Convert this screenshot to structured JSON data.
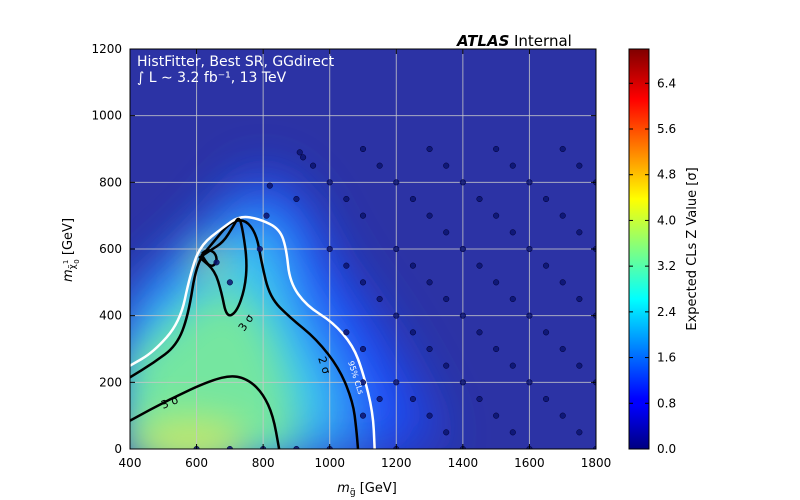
{
  "chart_data": {
    "type": "heatmap",
    "x_range": [
      400,
      1800
    ],
    "y_range": [
      0,
      1200
    ],
    "x_ticks": [
      "400",
      "600",
      "800",
      "1000",
      "1200",
      "1400",
      "1600",
      "1800"
    ],
    "y_ticks": [
      "0",
      "200",
      "400",
      "600",
      "800",
      "1000",
      "1200"
    ],
    "x_label": {
      "prefix": "m",
      "sub": "g̃",
      "suffix": " [GeV]"
    },
    "y_label": {
      "prefix": "m",
      "sub": "χ̃",
      "subsub": "0",
      "subsup": "1",
      "suffix": " [GeV]"
    },
    "header": {
      "atlas": "ATLAS",
      "status": "Internal"
    },
    "info_line1": "HistFitter, Best SR, GGdirect",
    "info_line2": "∫ L ∼ 3.2 fb⁻¹, 13 TeV",
    "colorbar": {
      "label": "Expected CLs Z Value [σ]",
      "range": [
        0.0,
        7.0
      ],
      "ticks": [
        "0.0",
        "0.8",
        "1.6",
        "2.4",
        "3.2",
        "4.0",
        "4.8",
        "5.6",
        "6.4"
      ],
      "colormap": "jet"
    },
    "grid": true,
    "contour_labels": [
      "3 σ",
      "2 σ",
      "3 σ",
      "95% CLs"
    ],
    "contours": [
      {
        "name": "3sigma-lower",
        "color": "#000000",
        "points": [
          [
            400,
            85
          ],
          [
            520,
            150
          ],
          [
            640,
            205
          ],
          [
            710,
            222
          ],
          [
            760,
            205
          ],
          [
            800,
            165
          ],
          [
            830,
            100
          ],
          [
            848,
            0
          ]
        ]
      },
      {
        "name": "2sigma",
        "color": "#000000",
        "points": [
          [
            400,
            215
          ],
          [
            470,
            258
          ],
          [
            540,
            310
          ],
          [
            575,
            400
          ],
          [
            600,
            560
          ],
          [
            650,
            620
          ],
          [
            700,
            680
          ],
          [
            745,
            690
          ],
          [
            780,
            645
          ],
          [
            795,
            560
          ],
          [
            820,
            455
          ],
          [
            880,
            395
          ],
          [
            960,
            330
          ],
          [
            1030,
            240
          ],
          [
            1070,
            140
          ],
          [
            1080,
            60
          ],
          [
            1085,
            0
          ]
        ]
      },
      {
        "name": "95cls",
        "color": "#ffffff",
        "points": [
          [
            400,
            250
          ],
          [
            470,
            290
          ],
          [
            550,
            380
          ],
          [
            580,
            520
          ],
          [
            610,
            610
          ],
          [
            680,
            665
          ],
          [
            730,
            700
          ],
          [
            790,
            690
          ],
          [
            850,
            660
          ],
          [
            870,
            600
          ],
          [
            880,
            500
          ],
          [
            930,
            430
          ],
          [
            1010,
            380
          ],
          [
            1070,
            310
          ],
          [
            1100,
            230
          ],
          [
            1130,
            110
          ],
          [
            1135,
            0
          ]
        ]
      },
      {
        "name": "3sigma-upper",
        "color": "#000000",
        "points": [
          [
            610,
            575
          ],
          [
            640,
            595
          ],
          [
            680,
            620
          ],
          [
            710,
            668
          ],
          [
            728,
            700
          ],
          [
            740,
            650
          ],
          [
            752,
            560
          ],
          [
            745,
            480
          ],
          [
            720,
            410
          ],
          [
            690,
            395
          ],
          [
            675,
            470
          ],
          [
            655,
            535
          ],
          [
            615,
            570
          ]
        ]
      },
      {
        "name": "3sigma-peak",
        "color": "#000000",
        "points": [
          [
            618,
            588
          ],
          [
            632,
            598
          ],
          [
            652,
            592
          ],
          [
            662,
            572
          ],
          [
            655,
            552
          ],
          [
            640,
            548
          ],
          [
            626,
            565
          ],
          [
            616,
            582
          ]
        ]
      }
    ],
    "grid_points": [
      [
        600,
        0
      ],
      [
        700,
        0
      ],
      [
        800,
        0
      ],
      [
        900,
        0
      ],
      [
        1000,
        0
      ],
      [
        700,
        500
      ],
      [
        660,
        560
      ],
      [
        790,
        600
      ],
      [
        810,
        700
      ],
      [
        820,
        790
      ],
      [
        900,
        750
      ],
      [
        910,
        890
      ],
      [
        920,
        875
      ],
      [
        950,
        850
      ],
      [
        1000,
        600
      ],
      [
        1000,
        800
      ],
      [
        1050,
        750
      ],
      [
        1100,
        700
      ],
      [
        1100,
        900
      ],
      [
        1150,
        850
      ],
      [
        1050,
        550
      ],
      [
        1100,
        500
      ],
      [
        1150,
        450
      ],
      [
        1050,
        350
      ],
      [
        1100,
        300
      ],
      [
        1100,
        200
      ],
      [
        1150,
        150
      ],
      [
        1100,
        100
      ],
      [
        1200,
        0
      ],
      [
        1200,
        200
      ],
      [
        1200,
        400
      ],
      [
        1200,
        600
      ],
      [
        1200,
        800
      ],
      [
        1250,
        750
      ],
      [
        1300,
        700
      ],
      [
        1350,
        650
      ],
      [
        1250,
        550
      ],
      [
        1300,
        500
      ],
      [
        1350,
        450
      ],
      [
        1250,
        350
      ],
      [
        1300,
        300
      ],
      [
        1350,
        250
      ],
      [
        1250,
        150
      ],
      [
        1300,
        100
      ],
      [
        1350,
        50
      ],
      [
        1300,
        900
      ],
      [
        1350,
        850
      ],
      [
        1400,
        0
      ],
      [
        1400,
        200
      ],
      [
        1400,
        400
      ],
      [
        1400,
        600
      ],
      [
        1400,
        800
      ],
      [
        1450,
        750
      ],
      [
        1500,
        700
      ],
      [
        1550,
        650
      ],
      [
        1450,
        550
      ],
      [
        1500,
        500
      ],
      [
        1550,
        450
      ],
      [
        1450,
        350
      ],
      [
        1500,
        300
      ],
      [
        1550,
        250
      ],
      [
        1450,
        150
      ],
      [
        1500,
        100
      ],
      [
        1550,
        50
      ],
      [
        1500,
        900
      ],
      [
        1550,
        850
      ],
      [
        1600,
        0
      ],
      [
        1600,
        200
      ],
      [
        1600,
        400
      ],
      [
        1600,
        600
      ],
      [
        1600,
        800
      ],
      [
        1650,
        750
      ],
      [
        1700,
        700
      ],
      [
        1750,
        650
      ],
      [
        1650,
        550
      ],
      [
        1700,
        500
      ],
      [
        1750,
        450
      ],
      [
        1650,
        350
      ],
      [
        1700,
        300
      ],
      [
        1750,
        250
      ],
      [
        1650,
        150
      ],
      [
        1700,
        100
      ],
      [
        1750,
        50
      ],
      [
        1700,
        900
      ],
      [
        1750,
        850
      ],
      [
        1800,
        0
      ],
      [
        1800,
        200
      ],
      [
        1800,
        400
      ],
      [
        1800,
        600
      ],
      [
        1800,
        800
      ]
    ]
  }
}
